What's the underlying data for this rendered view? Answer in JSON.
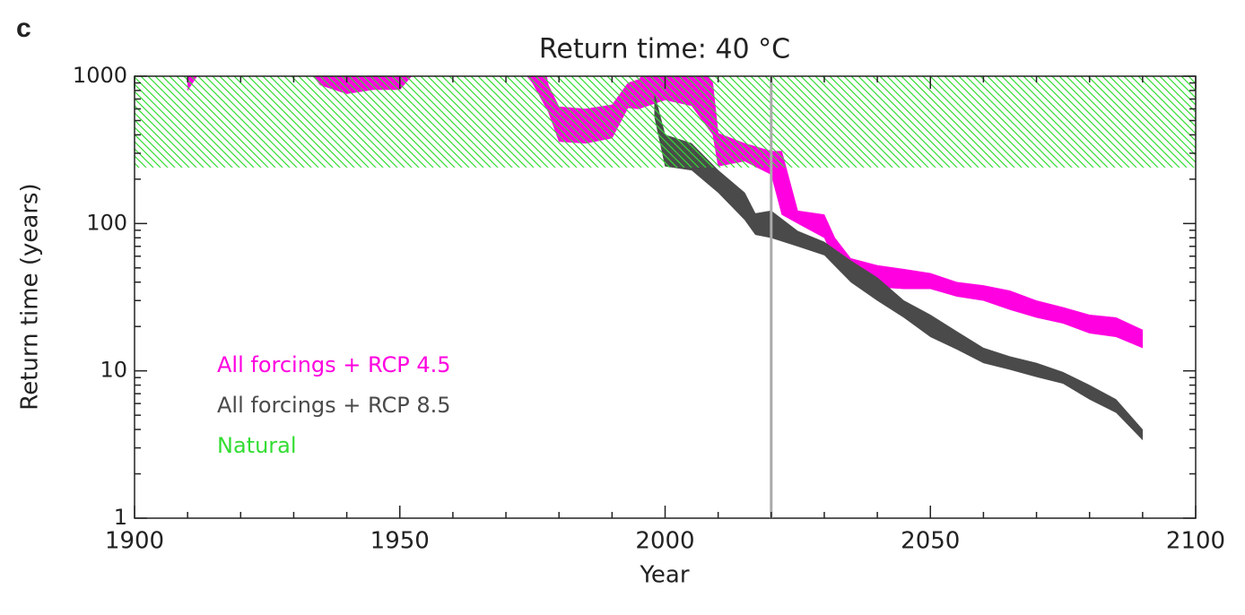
{
  "panel_label": "c",
  "chart_data": {
    "type": "band",
    "title": "Return time: 40 °C",
    "xlabel": "Year",
    "ylabel": "Return time (years)",
    "xlim": [
      1900,
      2100
    ],
    "xticks": [
      1900,
      1950,
      2000,
      2050,
      2100
    ],
    "minor_xticks": [
      1910,
      1920,
      1930,
      1940,
      1960,
      1970,
      1980,
      1990,
      2010,
      2020,
      2030,
      2040,
      2060,
      2070,
      2080,
      2090
    ],
    "ylim": [
      1,
      1000
    ],
    "log_y": true,
    "yticks": [
      1,
      10,
      100,
      1000
    ],
    "minor_yticks": [
      2,
      3,
      4,
      5,
      6,
      7,
      8,
      9,
      20,
      30,
      40,
      50,
      60,
      70,
      80,
      90,
      200,
      300,
      400,
      500,
      600,
      700,
      800,
      900
    ],
    "legend": "lower left",
    "vline": 2020,
    "vline_color": "#aaaaaa",
    "series": [
      {
        "name": "All forcings + RCP 4.5",
        "color": "#ff00e0",
        "hatch": false,
        "x": [
          1910,
          1915,
          1930,
          1935,
          1940,
          1945,
          1950,
          1955,
          1970,
          1975,
          1978,
          1980,
          1985,
          1990,
          1993,
          1995,
          2000,
          2005,
          2009,
          2010,
          2015,
          2020,
          2022,
          2025,
          2030,
          2032,
          2035,
          2040,
          2045,
          2050,
          2055,
          2060,
          2065,
          2070,
          2075,
          2080,
          2085,
          2090
        ],
        "lower": [
          800,
          1500,
          1500,
          870,
          760,
          810,
          810,
          1300,
          1500,
          900,
          570,
          360,
          350,
          380,
          610,
          600,
          690,
          630,
          400,
          245,
          265,
          215,
          115,
          100,
          80,
          56,
          49,
          37,
          36,
          36,
          32,
          30,
          26,
          23,
          21,
          18,
          17,
          14.3
        ],
        "upper": [
          3000,
          3000,
          3000,
          3000,
          3000,
          3000,
          3000,
          3000,
          3000,
          3000,
          870,
          620,
          600,
          640,
          900,
          950,
          1500,
          1500,
          900,
          410,
          350,
          310,
          310,
          122,
          115,
          80,
          58,
          52,
          49,
          46,
          40,
          38,
          35,
          30,
          27,
          24,
          23,
          19
        ]
      },
      {
        "name": "All forcings + RCP 8.5",
        "color": "#4a4a4a",
        "hatch": false,
        "x": [
          1998,
          2000,
          2005,
          2010,
          2015,
          2017,
          2020,
          2025,
          2030,
          2035,
          2040,
          2045,
          2050,
          2055,
          2060,
          2065,
          2070,
          2075,
          2080,
          2085,
          2090
        ],
        "lower": [
          530,
          245,
          230,
          162,
          106,
          84,
          80,
          70,
          61,
          40,
          30,
          23,
          17,
          14,
          11.3,
          10.2,
          9.1,
          8.2,
          6.4,
          5.2,
          3.4
        ],
        "upper": [
          760,
          400,
          350,
          230,
          162,
          117,
          122,
          89,
          75,
          56,
          43,
          30,
          24,
          18.5,
          14.3,
          12.5,
          11.3,
          9.8,
          8,
          6.4,
          4
        ]
      },
      {
        "name": "Natural",
        "color": "#33dd33",
        "hatch": true,
        "x": [
          1900,
          2100
        ],
        "lower": [
          240,
          240
        ],
        "upper": [
          1000,
          1000
        ]
      }
    ]
  }
}
